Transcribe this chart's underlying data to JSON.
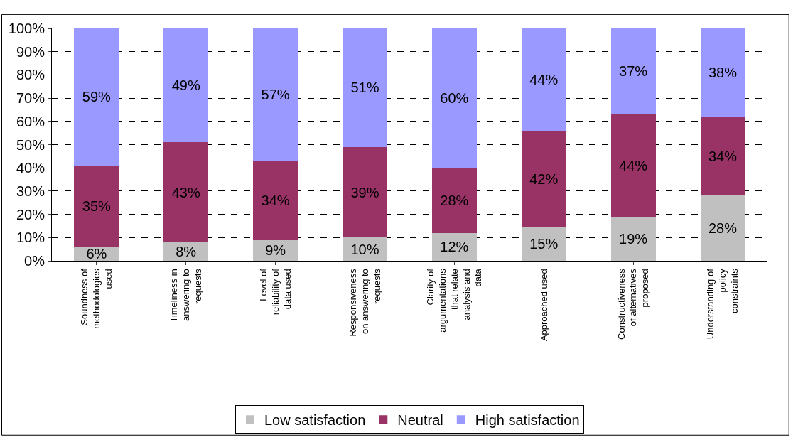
{
  "chart_data": {
    "type": "bar",
    "stacked": true,
    "categories": [
      "Soundness of methodologies used",
      "Timeliness in answering to requests",
      "Level of reliability of data used",
      "Responsiveness on answering to requests",
      "Clarity of argumentations that relate analysis and data",
      "Approached used",
      "Constructiveness of alternatives proposed",
      "Understanding of policy constraints"
    ],
    "series": [
      {
        "name": "Low satisfaction",
        "color": "#c0c0c0",
        "values": [
          6,
          8,
          9,
          10,
          12,
          14.5,
          19,
          28
        ],
        "value_labels": [
          "6%",
          "8%",
          "9%",
          "10%",
          "12%",
          "15%",
          "19%",
          "28%"
        ]
      },
      {
        "name": "Neutral",
        "color": "#993366",
        "values": [
          35,
          43,
          34,
          39,
          28,
          41.5,
          44,
          34
        ],
        "value_labels": [
          "35%",
          "43%",
          "34%",
          "39%",
          "28%",
          "42%",
          "44%",
          "34%"
        ]
      },
      {
        "name": "High satisfaction",
        "color": "#9999ff",
        "values": [
          59,
          49,
          57,
          51,
          60,
          44,
          37,
          38
        ],
        "value_labels": [
          "59%",
          "49%",
          "57%",
          "51%",
          "60%",
          "44%",
          "37%",
          "38%"
        ]
      }
    ],
    "ylim": [
      0,
      100
    ],
    "yticks": [
      {
        "value": 0,
        "label": "0%"
      },
      {
        "value": 10,
        "label": "10%"
      },
      {
        "value": 20,
        "label": "20%"
      },
      {
        "value": 30,
        "label": "30%"
      },
      {
        "value": 40,
        "label": "40%"
      },
      {
        "value": 50,
        "label": "50%"
      },
      {
        "value": 60,
        "label": "60%"
      },
      {
        "value": 70,
        "label": "70%"
      },
      {
        "value": 80,
        "label": "80%"
      },
      {
        "value": 90,
        "label": "90%"
      },
      {
        "value": 100,
        "label": "100%"
      }
    ],
    "grid": "y",
    "legend": "bottom"
  }
}
